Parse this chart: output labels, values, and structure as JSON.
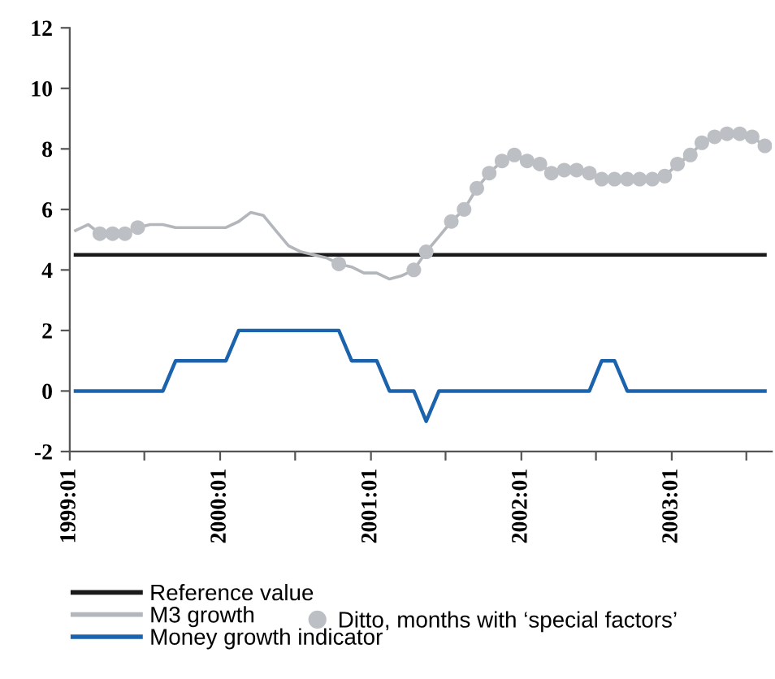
{
  "chart_data": {
    "type": "line",
    "ylim": [
      -2,
      12
    ],
    "yticks": [
      -2,
      0,
      2,
      4,
      6,
      8,
      10,
      12
    ],
    "xlim": [
      "1999-01-01",
      "2003-09-01"
    ],
    "xticks": [
      {
        "value": "1999-01-01",
        "label": "1999:01"
      },
      {
        "value": "1999-07-01",
        "label": null
      },
      {
        "value": "2000-01-01",
        "label": "2000:01"
      },
      {
        "value": "2000-07-01",
        "label": null
      },
      {
        "value": "2001-01-01",
        "label": "2001:01"
      },
      {
        "value": "2001-07-01",
        "label": null
      },
      {
        "value": "2002-01-01",
        "label": "2002:01"
      },
      {
        "value": "2002-07-01",
        "label": null
      },
      {
        "value": "2003-01-01",
        "label": "2003:01"
      },
      {
        "value": "2003-07-01",
        "label": null
      }
    ],
    "grid": false,
    "legend": "bottom",
    "series": [
      {
        "name": "Reference value",
        "color": "#1a1a1a",
        "marker": "none",
        "line_style": "solid",
        "x": [
          "1999-01-15",
          "2003-08-15"
        ],
        "values": [
          4.5,
          4.5
        ]
      },
      {
        "name": "M3 growth",
        "color": "#b3b6bb",
        "marker": "none",
        "line_style": "solid",
        "x": [
          "1999-01-15",
          "1999-02-15",
          "1999-03-15",
          "1999-04-15",
          "1999-05-15",
          "1999-06-15",
          "1999-07-15",
          "1999-08-15",
          "1999-09-15",
          "1999-10-15",
          "1999-11-15",
          "1999-12-15",
          "2000-01-15",
          "2000-02-15",
          "2000-03-15",
          "2000-04-15",
          "2000-05-15",
          "2000-06-15",
          "2000-07-15",
          "2000-08-15",
          "2000-09-15",
          "2000-10-15",
          "2000-11-15",
          "2000-12-15",
          "2001-01-15",
          "2001-02-15",
          "2001-03-15",
          "2001-04-15",
          "2001-05-15",
          "2001-06-15",
          "2001-07-15",
          "2001-08-15",
          "2001-09-15",
          "2001-10-15",
          "2001-11-15",
          "2001-12-15",
          "2002-01-15",
          "2002-02-15",
          "2002-03-15",
          "2002-04-15",
          "2002-05-15",
          "2002-06-15",
          "2002-07-15",
          "2002-08-15",
          "2002-09-15",
          "2002-10-15",
          "2002-11-15",
          "2002-12-15",
          "2003-01-15",
          "2003-02-15",
          "2003-03-15",
          "2003-04-15",
          "2003-05-15",
          "2003-06-15",
          "2003-07-15",
          "2003-08-15"
        ],
        "values": [
          5.3,
          5.5,
          5.2,
          5.2,
          5.2,
          5.4,
          5.5,
          5.5,
          5.4,
          5.4,
          5.4,
          5.4,
          5.4,
          5.6,
          5.9,
          5.8,
          5.3,
          4.8,
          4.6,
          4.5,
          4.4,
          4.2,
          4.1,
          3.9,
          3.9,
          3.7,
          3.8,
          4.0,
          4.6,
          5.1,
          5.6,
          6.0,
          6.7,
          7.2,
          7.6,
          7.8,
          7.6,
          7.5,
          7.2,
          7.3,
          7.3,
          7.2,
          7.0,
          7.0,
          7.0,
          7.0,
          7.0,
          7.1,
          7.5,
          7.8,
          8.2,
          8.4,
          8.5,
          8.5,
          8.4,
          8.1
        ]
      },
      {
        "name": "Ditto, months with ‘special factors’",
        "type": "scatter",
        "color": "#bcbfc4",
        "marker": "circle",
        "x": [
          "1999-03-15",
          "1999-04-15",
          "1999-05-15",
          "1999-06-15",
          "2000-10-15",
          "2001-04-15",
          "2001-05-15",
          "2001-07-15",
          "2001-08-15",
          "2001-09-15",
          "2001-10-15",
          "2001-11-15",
          "2001-12-15",
          "2002-01-15",
          "2002-02-15",
          "2002-03-15",
          "2002-04-15",
          "2002-05-15",
          "2002-06-15",
          "2002-07-15",
          "2002-08-15",
          "2002-09-15",
          "2002-10-15",
          "2002-11-15",
          "2002-12-15",
          "2003-01-15",
          "2003-02-15",
          "2003-03-15",
          "2003-04-15",
          "2003-05-15",
          "2003-06-15",
          "2003-07-15",
          "2003-08-15"
        ],
        "values": [
          5.2,
          5.2,
          5.2,
          5.4,
          4.2,
          4.0,
          4.6,
          5.6,
          6.0,
          6.7,
          7.2,
          7.6,
          7.8,
          7.6,
          7.5,
          7.2,
          7.3,
          7.3,
          7.2,
          7.0,
          7.0,
          7.0,
          7.0,
          7.0,
          7.1,
          7.5,
          7.8,
          8.2,
          8.4,
          8.5,
          8.5,
          8.4,
          8.1
        ]
      },
      {
        "name": "Money growth indicator",
        "color": "#1c63ad",
        "marker": "none",
        "line_style": "solid",
        "x": [
          "1999-01-15",
          "1999-02-15",
          "1999-03-15",
          "1999-04-15",
          "1999-05-15",
          "1999-06-15",
          "1999-07-15",
          "1999-08-15",
          "1999-09-15",
          "1999-10-15",
          "1999-11-15",
          "1999-12-15",
          "2000-01-15",
          "2000-02-15",
          "2000-03-15",
          "2000-04-15",
          "2000-05-15",
          "2000-06-15",
          "2000-07-15",
          "2000-08-15",
          "2000-09-15",
          "2000-10-15",
          "2000-11-15",
          "2000-12-15",
          "2001-01-15",
          "2001-02-15",
          "2001-03-15",
          "2001-04-15",
          "2001-05-15",
          "2001-06-15",
          "2001-07-15",
          "2001-08-15",
          "2001-09-15",
          "2001-10-15",
          "2001-11-15",
          "2001-12-15",
          "2002-01-15",
          "2002-02-15",
          "2002-03-15",
          "2002-04-15",
          "2002-05-15",
          "2002-06-15",
          "2002-07-15",
          "2002-08-15",
          "2002-09-15",
          "2002-10-15",
          "2002-11-15",
          "2002-12-15",
          "2003-01-15",
          "2003-02-15",
          "2003-03-15",
          "2003-04-15",
          "2003-05-15",
          "2003-06-15",
          "2003-07-15",
          "2003-08-15"
        ],
        "values": [
          0,
          0,
          0,
          0,
          0,
          0,
          0,
          0,
          1,
          1,
          1,
          1,
          1,
          2,
          2,
          2,
          2,
          2,
          2,
          2,
          2,
          2,
          1,
          1,
          1,
          0,
          0,
          0,
          -1,
          0,
          0,
          0,
          0,
          0,
          0,
          0,
          0,
          0,
          0,
          0,
          0,
          0,
          1,
          1,
          0,
          0,
          0,
          0,
          0,
          0,
          0,
          0,
          0,
          0,
          0,
          0
        ]
      }
    ]
  }
}
